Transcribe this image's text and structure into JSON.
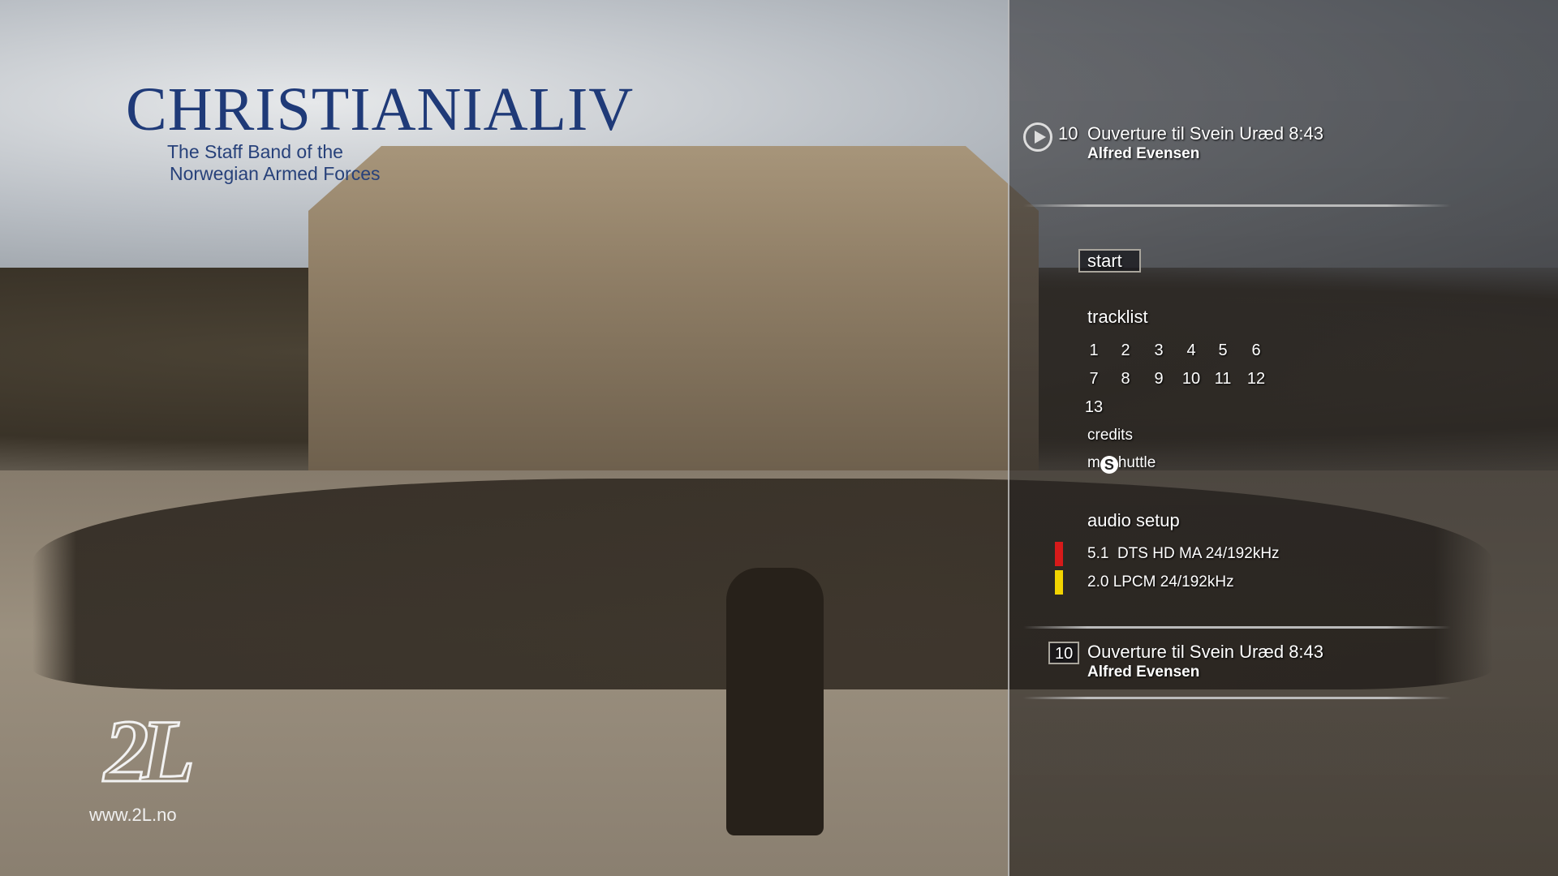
{
  "album": {
    "title": "CHRISTIANIALIV",
    "subtitle_line1": "The Staff Band of the",
    "subtitle_line2": "Norwegian Armed Forces"
  },
  "label": {
    "logo": "2L",
    "website": "www.2L.no"
  },
  "now_playing": {
    "icon": "play-circle-icon",
    "track_number": "10",
    "title": "Ouverture til Svein Uræd 8:43",
    "composer": "Alfred Evensen"
  },
  "menu": {
    "start": "start",
    "tracklist": "tracklist",
    "tracks": [
      "1",
      "2",
      "3",
      "4",
      "5",
      "6",
      "7",
      "8",
      "9",
      "10",
      "11",
      "12",
      "13"
    ],
    "credits": "credits",
    "mshuttle_prefix": "m",
    "mshuttle_s": "S",
    "mshuttle_suffix": "huttle"
  },
  "audio_setup": {
    "heading": "audio setup",
    "options": [
      {
        "label": "5.1  DTS HD MA 24/192kHz",
        "color": "#d71a1a"
      },
      {
        "label": "2.0 LPCM 24/192kHz",
        "color": "#f2d400"
      }
    ]
  },
  "selected_track": {
    "track_number": "10",
    "title": "Ouverture til Svein Uræd 8:43",
    "composer": "Alfred Evensen"
  }
}
